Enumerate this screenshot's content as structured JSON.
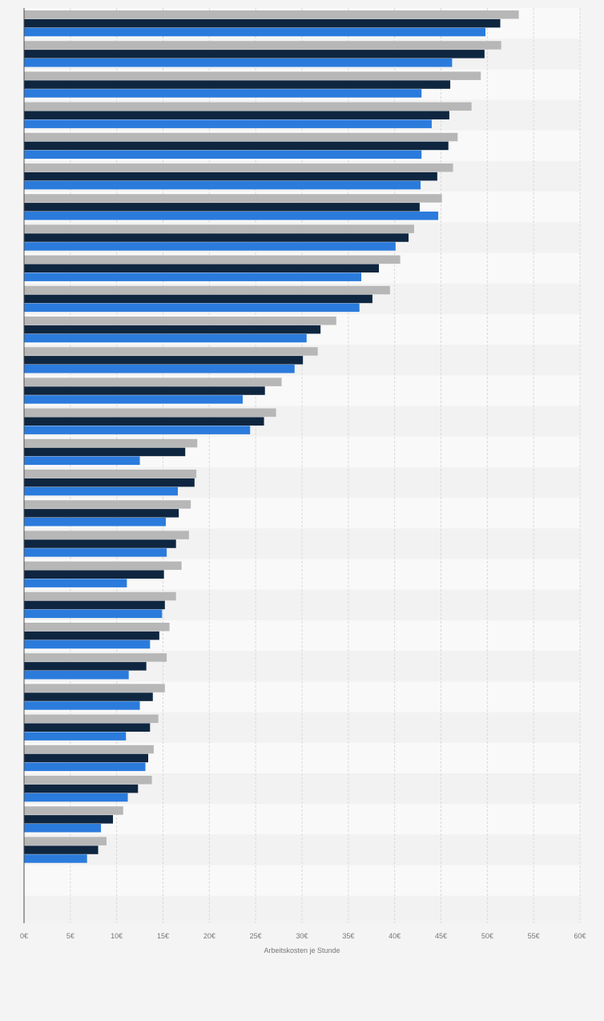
{
  "colors": {
    "background": "#f4f4f4",
    "band_light": "#f9f9f9",
    "band_dark": "#f2f2f2",
    "grid": "#d9d9d9",
    "axis": "#4d4d4d",
    "tick_text": "#777777",
    "series": [
      "#b7b7b7",
      "#0f2640",
      "#2b7bdc"
    ]
  },
  "chart_data": {
    "type": "bar",
    "orientation": "horizontal",
    "grouped": true,
    "title": "",
    "xlabel": "Arbeitskosten je Stunde",
    "ylabel": "",
    "xlim": [
      0,
      60
    ],
    "xticks": [
      0,
      5,
      10,
      15,
      20,
      25,
      30,
      35,
      40,
      45,
      50,
      55,
      60
    ],
    "xtick_labels": [
      "0€",
      "5€",
      "10€",
      "15€",
      "20€",
      "25€",
      "30€",
      "35€",
      "40€",
      "45€",
      "50€",
      "55€",
      "60€"
    ],
    "grid": true,
    "legend": false,
    "category_labels_visible": false,
    "category_count": 29,
    "series": [
      {
        "values": [
          53.4,
          51.5,
          49.3,
          48.3,
          46.8,
          46.3,
          45.1,
          42.1,
          40.6,
          39.5,
          33.7,
          31.7,
          27.8,
          27.2,
          18.7,
          18.6,
          18.0,
          17.8,
          17.0,
          16.4,
          15.7,
          15.4,
          15.2,
          14.5,
          14.0,
          13.8,
          10.7,
          8.9,
          null
        ]
      },
      {
        "values": [
          51.4,
          49.7,
          46.0,
          45.9,
          45.8,
          44.6,
          42.7,
          41.5,
          38.3,
          37.6,
          32.0,
          30.1,
          26.0,
          25.9,
          17.4,
          18.4,
          16.7,
          16.4,
          15.1,
          15.2,
          14.6,
          13.2,
          13.9,
          13.6,
          13.4,
          12.3,
          9.6,
          8.0,
          null
        ]
      },
      {
        "values": [
          49.8,
          46.2,
          42.9,
          44.0,
          42.9,
          42.8,
          44.7,
          40.1,
          36.4,
          36.2,
          30.5,
          29.2,
          23.6,
          24.4,
          12.5,
          16.6,
          15.3,
          15.4,
          11.1,
          14.9,
          13.6,
          11.3,
          12.5,
          11.0,
          13.1,
          11.2,
          8.3,
          6.8,
          null
        ]
      }
    ]
  }
}
